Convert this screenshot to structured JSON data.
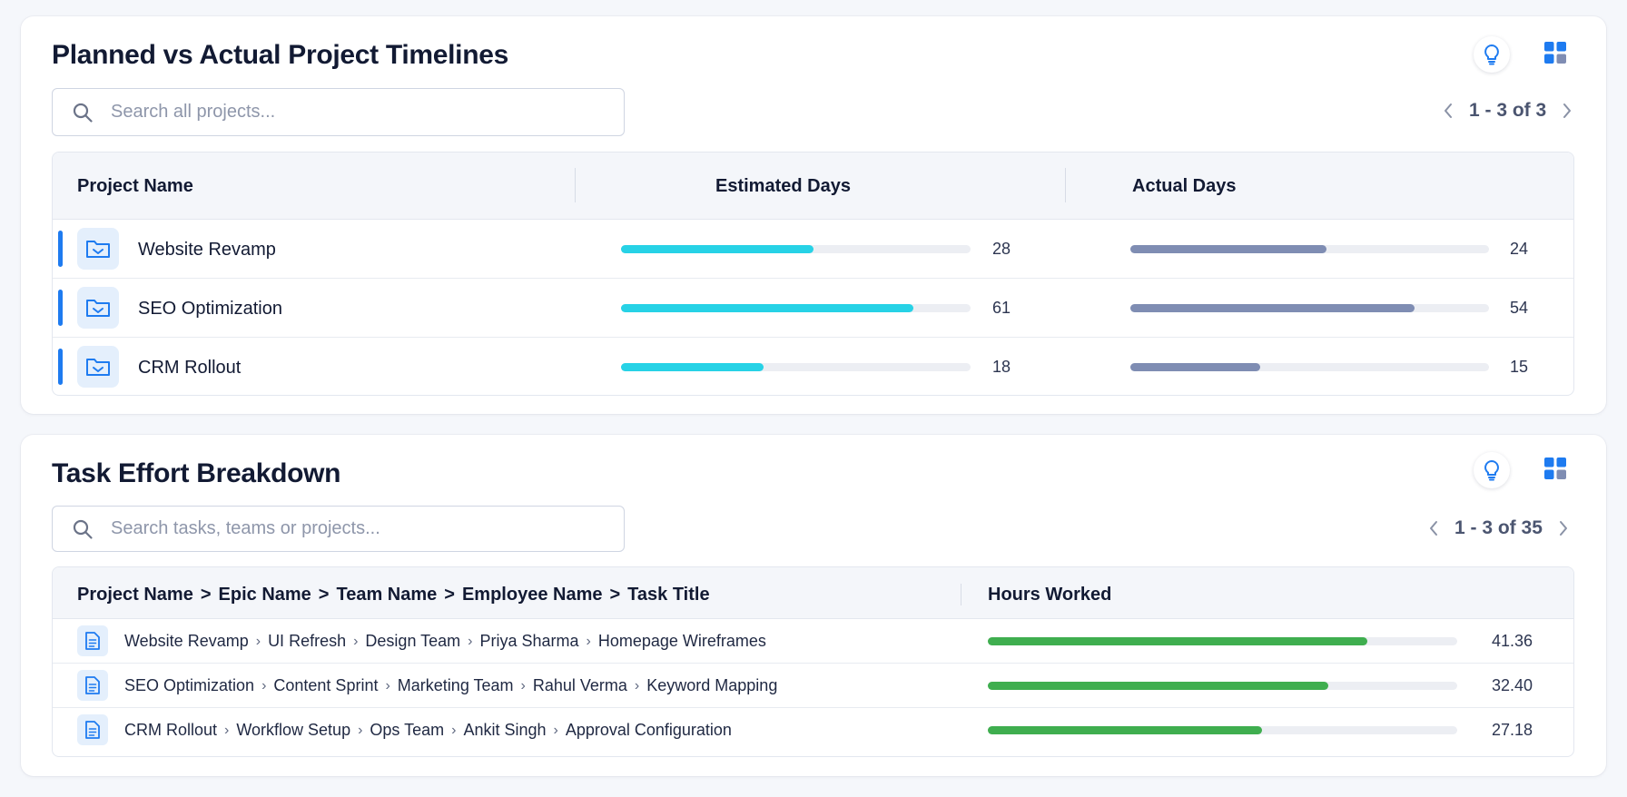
{
  "timelines": {
    "title": "Planned vs Actual Project Timelines",
    "search_placeholder": "Search all projects...",
    "pager": "1 - 3 of 3",
    "columns": {
      "name": "Project Name",
      "estimated": "Estimated Days",
      "actual": "Actual Days"
    },
    "rows": [
      {
        "name": "Website Revamp",
        "estimated": "28",
        "actual": "24"
      },
      {
        "name": "SEO Optimization",
        "estimated": "61",
        "actual": "54"
      },
      {
        "name": "CRM Rollout",
        "estimated": "18",
        "actual": "15"
      }
    ],
    "colors": {
      "estimated_bar": "#27d2e6",
      "actual_bar": "#7f8db3",
      "accent": "#1e7bf0"
    }
  },
  "effort": {
    "title": "Task Effort Breakdown",
    "search_placeholder": "Search tasks, teams or projects...",
    "pager": "1 - 3 of 35",
    "columns": {
      "path": [
        "Project Name",
        "Epic Name",
        "Team Name",
        "Employee Name",
        "Task Title"
      ],
      "hours": "Hours Worked"
    },
    "rows": [
      {
        "path": [
          "Website Revamp",
          "UI Refresh",
          "Design Team",
          "Priya Sharma",
          "Homepage Wireframes"
        ],
        "hours": "41.36"
      },
      {
        "path": [
          "SEO Optimization",
          "Content Sprint",
          "Marketing Team",
          "Rahul Verma",
          "Keyword Mapping"
        ],
        "hours": "32.40"
      },
      {
        "path": [
          "CRM Rollout",
          "Workflow Setup",
          "Ops Team",
          "Ankit Singh",
          "Approval Configuration"
        ],
        "hours": "27.18"
      }
    ],
    "hours_max": 50,
    "colors": {
      "hours_bar": "#3fae4f"
    }
  },
  "icons": {
    "bulb": "lightbulb-icon",
    "grid": "grid-view-icon",
    "search": "search-icon",
    "folder": "folder-icon",
    "doc": "document-icon"
  }
}
